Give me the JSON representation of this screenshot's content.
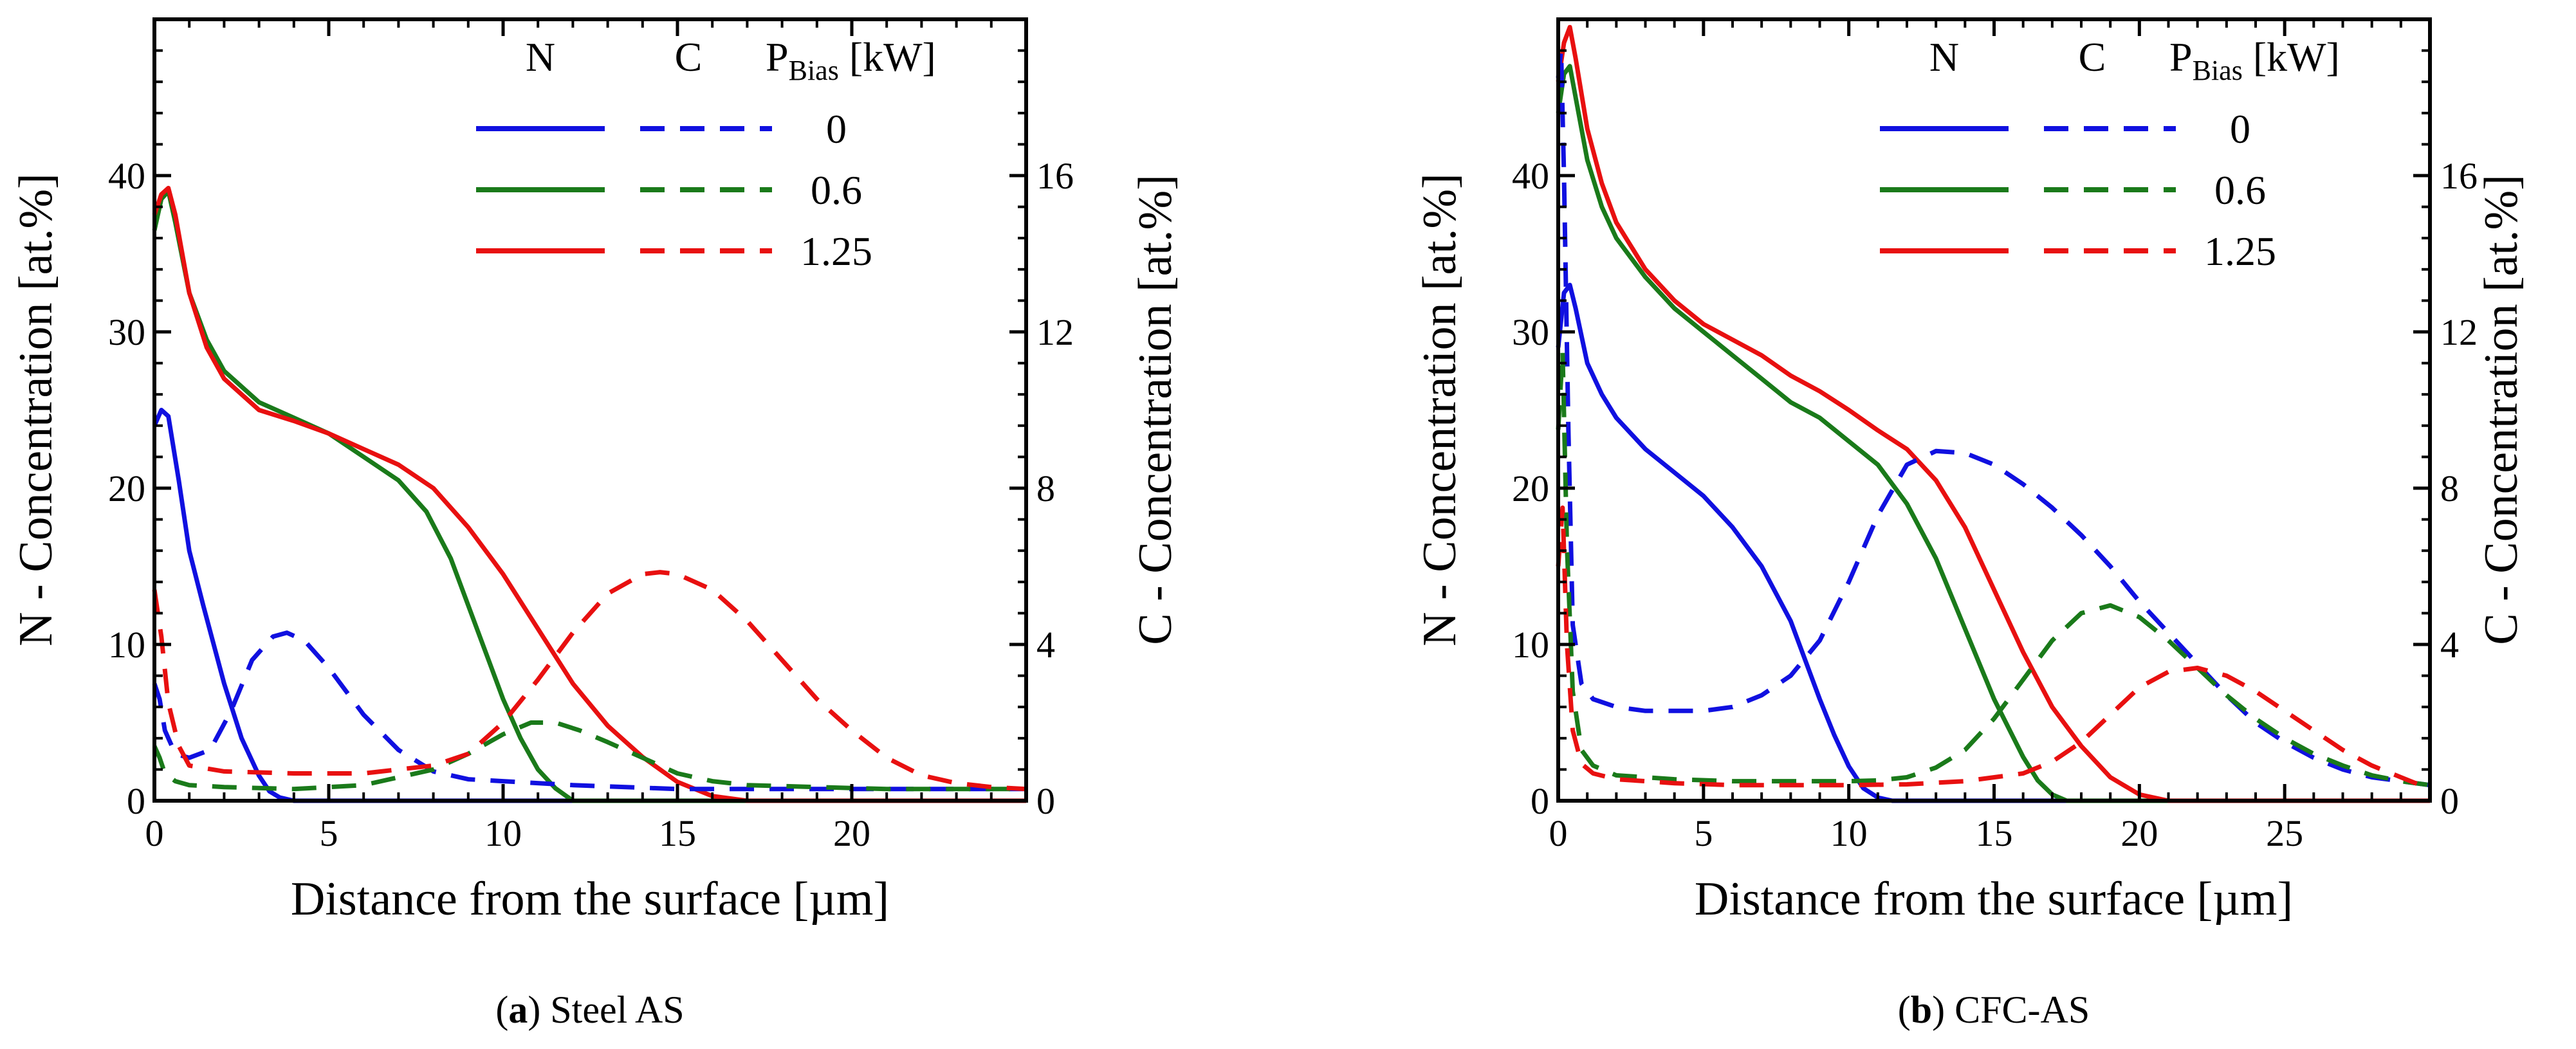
{
  "chart_data": [
    {
      "type": "line",
      "panel": "a",
      "caption_letter": "a",
      "caption_rest": " Steel AS",
      "xlabel": "Distance from the surface [µm]",
      "ylabel_left": "N - Concentration [at.%]",
      "ylabel_right": "C - Concentration [at.%]",
      "xlim": [
        0,
        25
      ],
      "ylim_left": [
        0,
        50
      ],
      "ylim_right": [
        0,
        20
      ],
      "xticks": [
        0,
        5,
        10,
        15,
        20
      ],
      "yticks_left": [
        0,
        10,
        20,
        30,
        40
      ],
      "yticks_right": [
        0,
        4,
        8,
        12,
        16
      ],
      "legend": {
        "header_n": "N",
        "header_c": "C",
        "header_p": "P",
        "header_p_sub": "Bias",
        "header_unit": " [kW]",
        "entries": [
          {
            "label": "0",
            "color": "#1010e0"
          },
          {
            "label": "0.6",
            "color": "#1a7a1a"
          },
          {
            "label": "1.25",
            "color": "#e81010"
          }
        ]
      },
      "series": [
        {
          "name": "N 0 kW",
          "axis": "left",
          "style": "solid",
          "color": "#1010e0",
          "x": [
            0,
            0.2,
            0.4,
            0.7,
            1.0,
            1.4,
            2.0,
            2.5,
            3.0,
            3.3,
            3.6,
            4.0,
            25
          ],
          "y": [
            24,
            25,
            24.6,
            20.5,
            16,
            12.5,
            7.5,
            4.0,
            1.6,
            0.6,
            0.2,
            0,
            0
          ]
        },
        {
          "name": "N 0.6 kW",
          "axis": "left",
          "style": "solid",
          "color": "#1a7a1a",
          "x": [
            0,
            0.2,
            0.4,
            0.6,
            1.0,
            1.5,
            2,
            3,
            4,
            5,
            6,
            7,
            7.8,
            8.5,
            9,
            9.5,
            10,
            10.5,
            11,
            11.5,
            12,
            25
          ],
          "y": [
            36.5,
            38.5,
            39,
            37,
            32.5,
            29.5,
            27.5,
            25.5,
            24.5,
            23.5,
            22,
            20.5,
            18.5,
            15.5,
            12.5,
            9.5,
            6.5,
            4,
            2,
            0.8,
            0,
            0
          ]
        },
        {
          "name": "N 1.25 kW",
          "axis": "left",
          "style": "solid",
          "color": "#e81010",
          "x": [
            0,
            0.2,
            0.4,
            0.6,
            1.0,
            1.5,
            2,
            3,
            4,
            5,
            6,
            7,
            8,
            9,
            10,
            11,
            12,
            13,
            14,
            15,
            16,
            17,
            25
          ],
          "y": [
            37.5,
            38.8,
            39.2,
            37.5,
            32.5,
            29,
            27,
            25,
            24.3,
            23.5,
            22.5,
            21.5,
            20,
            17.5,
            14.5,
            11,
            7.5,
            4.8,
            2.8,
            1.2,
            0.3,
            0,
            0
          ]
        },
        {
          "name": "C 0 kW",
          "axis": "right",
          "style": "dashed",
          "color": "#1010e0",
          "x": [
            0,
            0.15,
            0.3,
            0.6,
            1.0,
            1.6,
            2.2,
            2.8,
            3.4,
            3.8,
            4.3,
            5,
            6,
            7,
            8,
            9,
            10,
            12,
            15,
            20,
            25
          ],
          "y": [
            3.0,
            2.6,
            1.8,
            1.2,
            1.1,
            1.3,
            2.3,
            3.6,
            4.2,
            4.3,
            4.1,
            3.4,
            2.2,
            1.3,
            0.75,
            0.55,
            0.5,
            0.4,
            0.3,
            0.3,
            0.3
          ]
        },
        {
          "name": "C 0.6 kW",
          "axis": "right",
          "style": "dashed",
          "color": "#1a7a1a",
          "x": [
            0,
            0.15,
            0.3,
            0.6,
            1.0,
            2,
            4,
            6,
            8,
            9,
            10,
            10.8,
            11.5,
            12.2,
            13,
            14,
            15,
            16,
            17,
            19,
            21,
            25
          ],
          "y": [
            1.4,
            1.1,
            0.7,
            0.5,
            0.4,
            0.35,
            0.3,
            0.4,
            0.8,
            1.2,
            1.7,
            2.0,
            2.0,
            1.8,
            1.5,
            1.1,
            0.7,
            0.5,
            0.4,
            0.35,
            0.3,
            0.3
          ]
        },
        {
          "name": "C 1.25 kW",
          "axis": "right",
          "style": "dashed",
          "color": "#e81010",
          "x": [
            0,
            0.2,
            0.4,
            0.7,
            1.0,
            2,
            4,
            6,
            8,
            9,
            10,
            11,
            12,
            13,
            14,
            14.5,
            15,
            16,
            17,
            18,
            19,
            20,
            21,
            22,
            23,
            24,
            25
          ],
          "y": [
            5.4,
            4.2,
            2.5,
            1.4,
            0.9,
            0.75,
            0.7,
            0.7,
            0.9,
            1.2,
            2.0,
            3.1,
            4.3,
            5.3,
            5.8,
            5.85,
            5.8,
            5.4,
            4.6,
            3.6,
            2.6,
            1.8,
            1.1,
            0.65,
            0.45,
            0.35,
            0.3
          ]
        }
      ]
    },
    {
      "type": "line",
      "panel": "b",
      "caption_letter": "b",
      "caption_rest": " CFC-AS",
      "xlabel": "Distance from the surface [µm]",
      "ylabel_left": "N - Concentration [at.%]",
      "ylabel_right": "C - Concentration [at.%]",
      "xlim": [
        0,
        30
      ],
      "ylim_left": [
        0,
        50
      ],
      "ylim_right": [
        0,
        20
      ],
      "xticks": [
        0,
        5,
        10,
        15,
        20,
        25
      ],
      "yticks_left": [
        0,
        10,
        20,
        30,
        40
      ],
      "yticks_right": [
        0,
        4,
        8,
        12,
        16
      ],
      "legend": {
        "header_n": "N",
        "header_c": "C",
        "header_p": "P",
        "header_p_sub": "Bias",
        "header_unit": " [kW]",
        "entries": [
          {
            "label": "0",
            "color": "#1010e0"
          },
          {
            "label": "0.6",
            "color": "#1a7a1a"
          },
          {
            "label": "1.25",
            "color": "#e81010"
          }
        ]
      },
      "series": [
        {
          "name": "N 0 kW",
          "axis": "left",
          "style": "solid",
          "color": "#1010e0",
          "x": [
            0,
            0.2,
            0.4,
            0.6,
            1.0,
            1.5,
            2,
            3,
            4,
            5,
            6,
            7,
            8,
            8.5,
            9,
            9.5,
            10,
            10.5,
            11,
            11.5,
            30
          ],
          "y": [
            29,
            32.5,
            33,
            31.5,
            28,
            26,
            24.5,
            22.5,
            21,
            19.5,
            17.5,
            15,
            11.5,
            9,
            6.5,
            4.2,
            2.2,
            0.8,
            0.2,
            0,
            0
          ]
        },
        {
          "name": "N 0.6 kW",
          "axis": "left",
          "style": "solid",
          "color": "#1a7a1a",
          "x": [
            0,
            0.2,
            0.4,
            0.6,
            1.0,
            1.5,
            2,
            3,
            4,
            5,
            6,
            7,
            8,
            9,
            10,
            11,
            12,
            13,
            14,
            15,
            16,
            16.5,
            17,
            17.5,
            30
          ],
          "y": [
            44,
            46.5,
            47,
            45,
            41,
            38,
            36,
            33.5,
            31.5,
            30,
            28.5,
            27,
            25.5,
            24.5,
            23,
            21.5,
            19,
            15.5,
            11,
            6.5,
            2.8,
            1.3,
            0.4,
            0,
            0
          ]
        },
        {
          "name": "N 1.25 kW",
          "axis": "left",
          "style": "solid",
          "color": "#e81010",
          "x": [
            0,
            0.2,
            0.4,
            0.6,
            1.0,
            1.5,
            2,
            3,
            4,
            5,
            6,
            7,
            8,
            9,
            10,
            11,
            12,
            13,
            14,
            15,
            16,
            17,
            18,
            19,
            20,
            21,
            30
          ],
          "y": [
            46,
            48.5,
            49.5,
            47.5,
            43,
            39.5,
            37,
            34,
            32,
            30.5,
            29.5,
            28.5,
            27.2,
            26.2,
            25,
            23.7,
            22.5,
            20.5,
            17.5,
            13.5,
            9.5,
            6,
            3.5,
            1.5,
            0.4,
            0,
            0
          ]
        },
        {
          "name": "C 0 kW",
          "axis": "right",
          "style": "dashed",
          "color": "#1010e0",
          "x": [
            0,
            0.1,
            0.2,
            0.35,
            0.5,
            0.8,
            1.2,
            2,
            3,
            4,
            5,
            6,
            7,
            8,
            9,
            10,
            11,
            12,
            13,
            14,
            15,
            16,
            17,
            18,
            19,
            20,
            21,
            22,
            23,
            24,
            25,
            26,
            27,
            28,
            29,
            30
          ],
          "y": [
            18.5,
            19.2,
            16,
            9.5,
            4.5,
            3.0,
            2.6,
            2.4,
            2.3,
            2.3,
            2.3,
            2.4,
            2.7,
            3.2,
            4.1,
            5.6,
            7.3,
            8.6,
            8.95,
            8.9,
            8.6,
            8.1,
            7.5,
            6.8,
            6.0,
            5.1,
            4.3,
            3.5,
            2.7,
            2.0,
            1.5,
            1.1,
            0.8,
            0.6,
            0.5,
            0.4
          ]
        },
        {
          "name": "C 0.6 kW",
          "axis": "right",
          "style": "dashed",
          "color": "#1a7a1a",
          "x": [
            0,
            0.15,
            0.3,
            0.5,
            0.8,
            1.2,
            2,
            4,
            6,
            8,
            10,
            11,
            12,
            13,
            14,
            15,
            16,
            17,
            18,
            19,
            20,
            21,
            22,
            23,
            24,
            25,
            26,
            27,
            28,
            29,
            30
          ],
          "y": [
            9.5,
            11.5,
            6.5,
            2.8,
            1.3,
            0.9,
            0.65,
            0.55,
            0.5,
            0.5,
            0.5,
            0.52,
            0.6,
            0.85,
            1.3,
            2.1,
            3.1,
            4.1,
            4.8,
            5.0,
            4.7,
            4.1,
            3.4,
            2.7,
            2.1,
            1.6,
            1.2,
            0.9,
            0.65,
            0.5,
            0.4
          ]
        },
        {
          "name": "C 1.25 kW",
          "axis": "right",
          "style": "dashed",
          "color": "#e81010",
          "x": [
            0,
            0.15,
            0.3,
            0.5,
            0.8,
            1.2,
            2,
            4,
            6,
            8,
            10,
            12,
            14,
            16,
            17,
            18,
            19,
            20,
            21,
            22,
            23,
            24,
            25,
            26,
            27,
            28,
            29,
            30
          ],
          "y": [
            6,
            7.5,
            4,
            1.8,
            0.95,
            0.7,
            0.55,
            0.45,
            0.4,
            0.4,
            0.4,
            0.42,
            0.5,
            0.7,
            1.0,
            1.5,
            2.2,
            2.9,
            3.3,
            3.4,
            3.2,
            2.8,
            2.3,
            1.8,
            1.3,
            0.9,
            0.6,
            0.3
          ]
        }
      ]
    }
  ]
}
